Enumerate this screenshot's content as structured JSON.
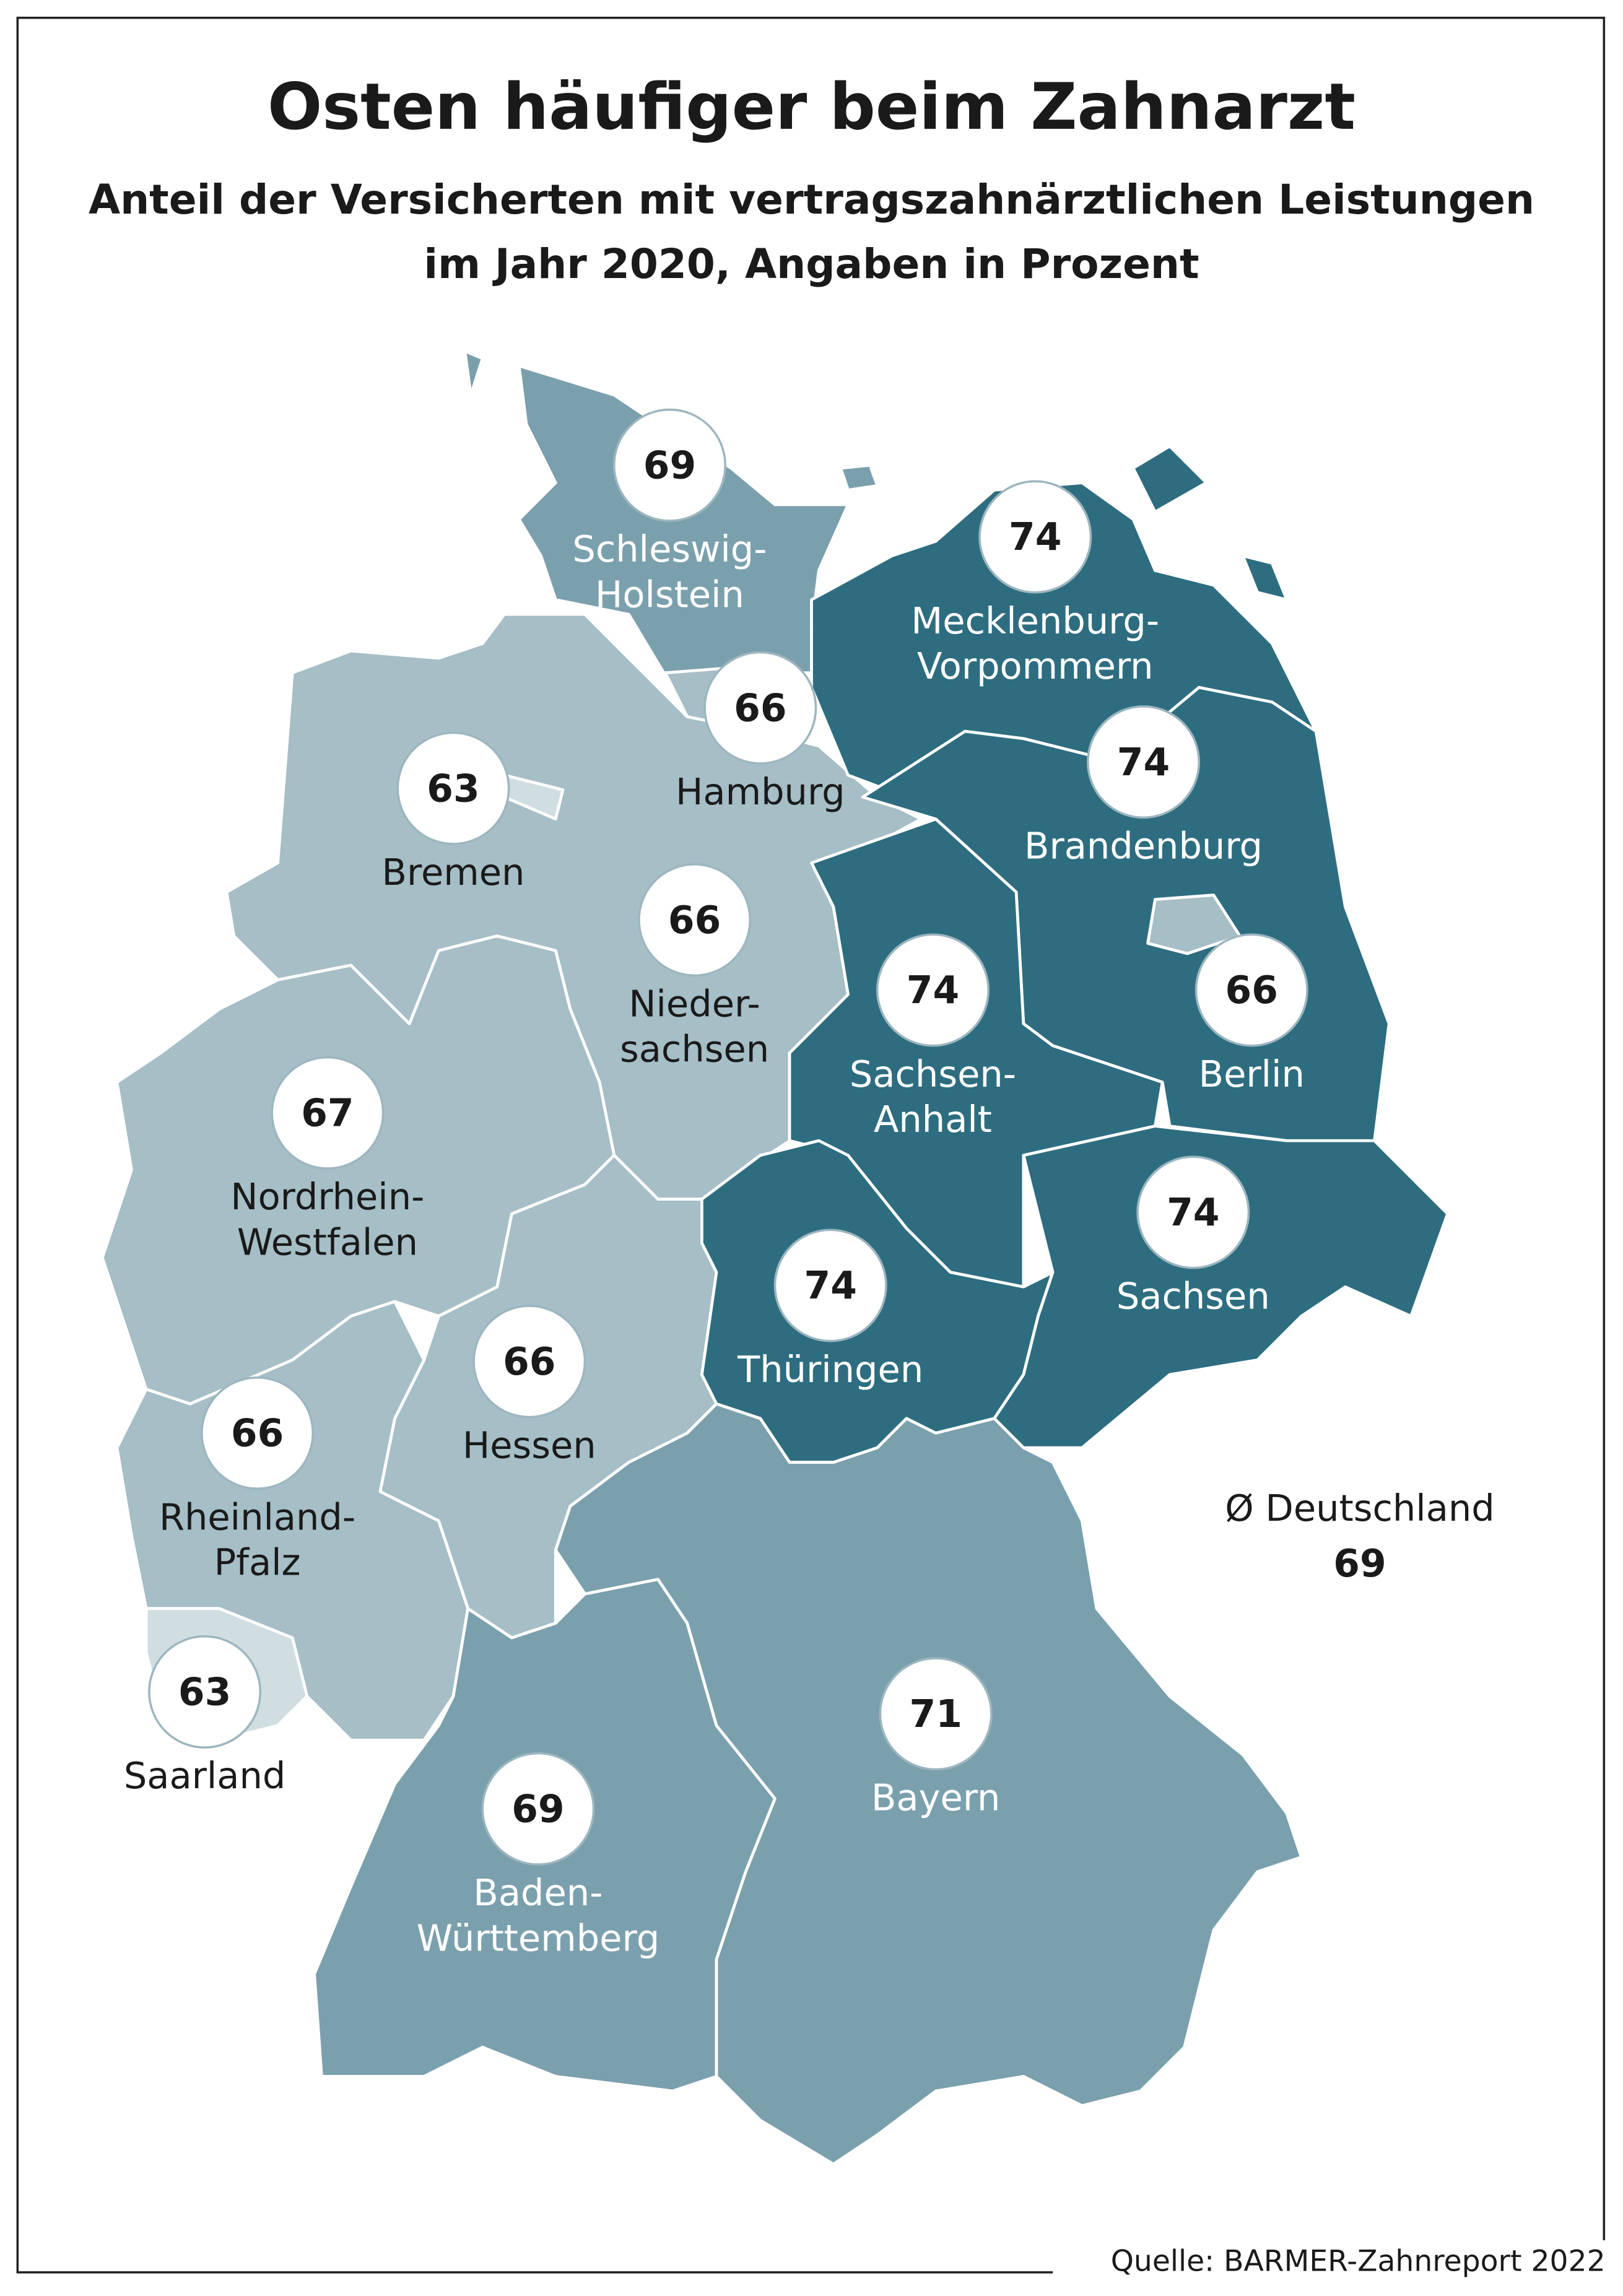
{
  "title": "Osten häufiger beim Zahnarzt",
  "subtitle_line1": "Anteil der Versicherten mit vertragszahnärztlichen Leistungen",
  "subtitle_line2": "im Jahr 2020, Angaben in Prozent",
  "colors": {
    "dark": "#2e6d80",
    "mid": "#7ba0ad",
    "light": "#a6bec6",
    "lightest": "#d0dee2"
  },
  "states": [
    {
      "name_l1": "Schleswig-",
      "name_l2": "Holstein",
      "value": "69"
    },
    {
      "name_l1": "Mecklenburg-",
      "name_l2": "Vorpommern",
      "value": "74"
    },
    {
      "name_l1": "Hamburg",
      "name_l2": "",
      "value": "66"
    },
    {
      "name_l1": "Bremen",
      "name_l2": "",
      "value": "63"
    },
    {
      "name_l1": "Brandenburg",
      "name_l2": "",
      "value": "74"
    },
    {
      "name_l1": "Nieder-",
      "name_l2": "sachsen",
      "value": "66"
    },
    {
      "name_l1": "Sachsen-",
      "name_l2": "Anhalt",
      "value": "74"
    },
    {
      "name_l1": "Berlin",
      "name_l2": "",
      "value": "66"
    },
    {
      "name_l1": "Nordrhein-",
      "name_l2": "Westfalen",
      "value": "67"
    },
    {
      "name_l1": "Sachsen",
      "name_l2": "",
      "value": "74"
    },
    {
      "name_l1": "Thüringen",
      "name_l2": "",
      "value": "74"
    },
    {
      "name_l1": "Hessen",
      "name_l2": "",
      "value": "66"
    },
    {
      "name_l1": "Rheinland-",
      "name_l2": "Pfalz",
      "value": "66"
    },
    {
      "name_l1": "Saarland",
      "name_l2": "",
      "value": "63"
    },
    {
      "name_l1": "Bayern",
      "name_l2": "",
      "value": "71"
    },
    {
      "name_l1": "Baden-",
      "name_l2": "Württemberg",
      "value": "69"
    }
  ],
  "average": {
    "label": "Ø Deutschland",
    "value": "69"
  },
  "source": "Quelle: BARMER-Zahnreport 2022"
}
